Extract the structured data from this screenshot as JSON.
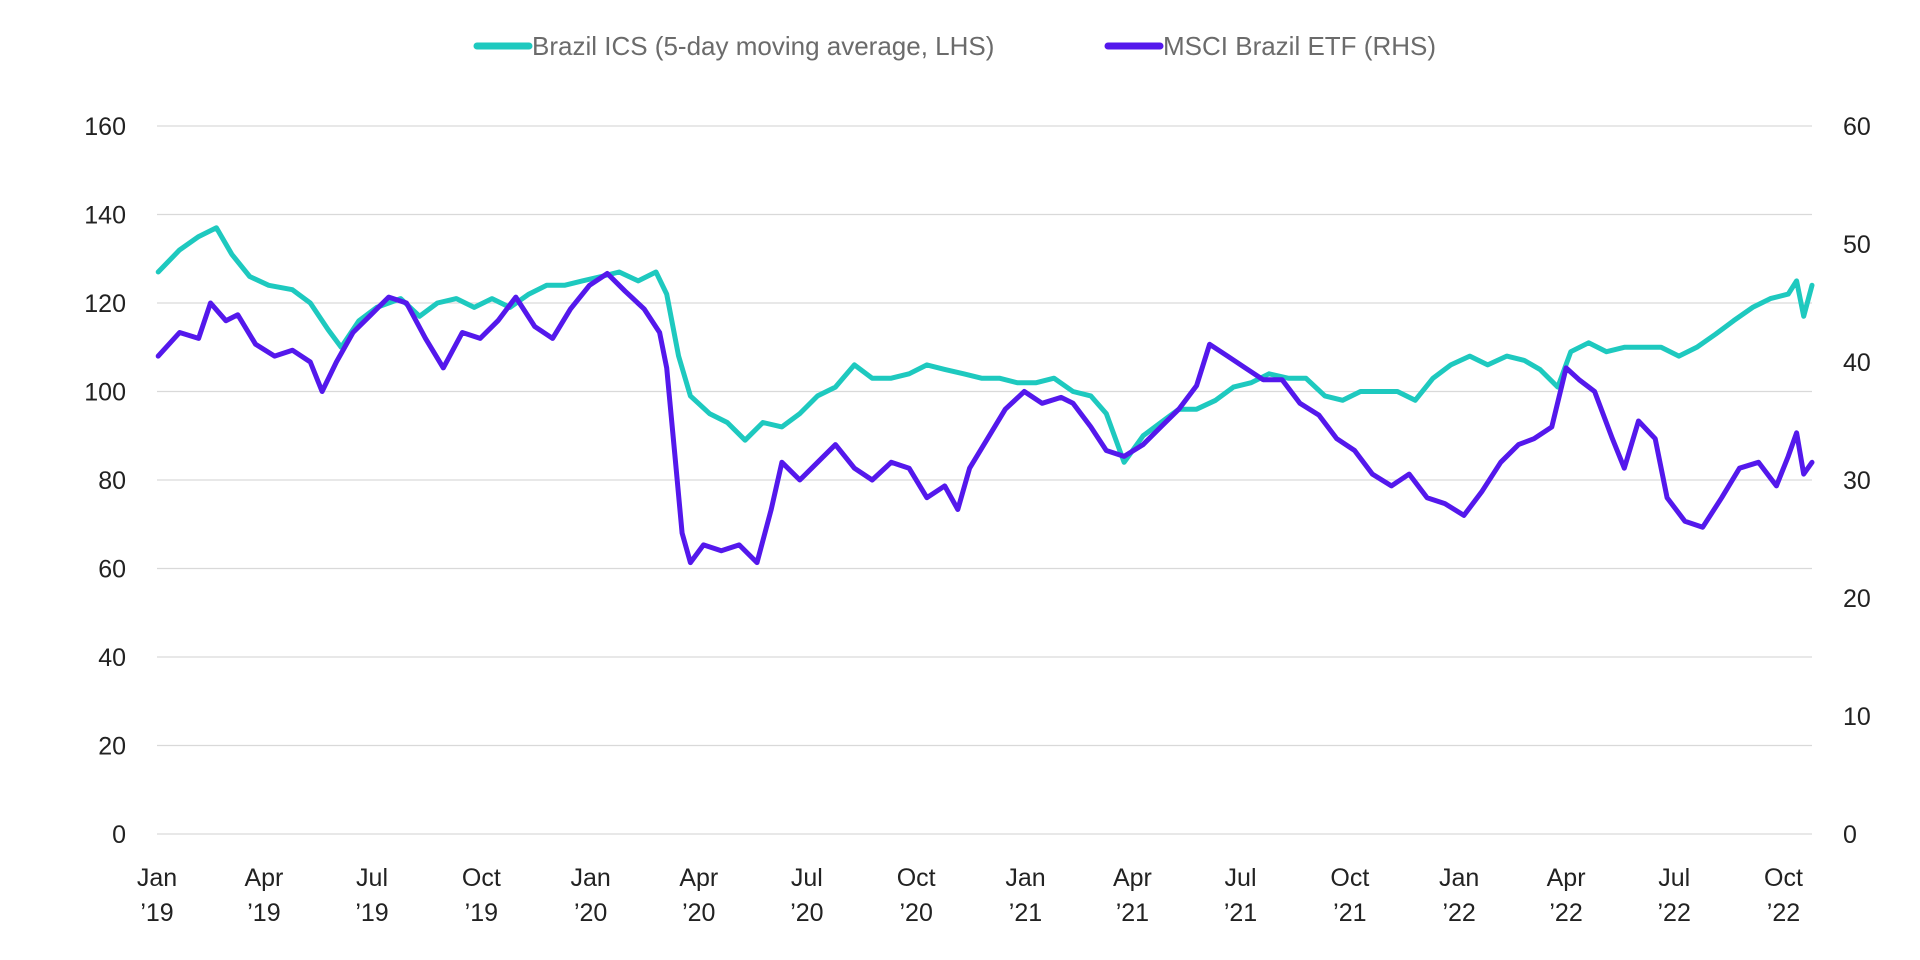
{
  "chart_data": {
    "type": "line",
    "title": "",
    "legend": {
      "placement": "top-center",
      "entries": [
        {
          "label": "Brazil ICS (5-day moving average, LHS)",
          "color": "#1ec9bf",
          "axis": "left"
        },
        {
          "label": "MSCI Brazil ETF (RHS)",
          "color": "#5418ec",
          "axis": "right"
        }
      ]
    },
    "x_axis": {
      "range": [
        "2019-01-01",
        "2022-10-25"
      ],
      "ticks": [
        {
          "date": "2019-01-01",
          "month": "Jan",
          "year": "’19"
        },
        {
          "date": "2019-04-01",
          "month": "Apr",
          "year": "’19"
        },
        {
          "date": "2019-07-01",
          "month": "Jul",
          "year": "’19"
        },
        {
          "date": "2019-10-01",
          "month": "Oct",
          "year": "’19"
        },
        {
          "date": "2020-01-01",
          "month": "Jan",
          "year": "’20"
        },
        {
          "date": "2020-04-01",
          "month": "Apr",
          "year": "’20"
        },
        {
          "date": "2020-07-01",
          "month": "Jul",
          "year": "’20"
        },
        {
          "date": "2020-10-01",
          "month": "Oct",
          "year": "’20"
        },
        {
          "date": "2021-01-01",
          "month": "Jan",
          "year": "’21"
        },
        {
          "date": "2021-04-01",
          "month": "Apr",
          "year": "’21"
        },
        {
          "date": "2021-07-01",
          "month": "Jul",
          "year": "’21"
        },
        {
          "date": "2021-10-01",
          "month": "Oct",
          "year": "’21"
        },
        {
          "date": "2022-01-01",
          "month": "Jan",
          "year": "’22"
        },
        {
          "date": "2022-04-01",
          "month": "Apr",
          "year": "’22"
        },
        {
          "date": "2022-07-01",
          "month": "Jul",
          "year": "’22"
        },
        {
          "date": "2022-10-01",
          "month": "Oct",
          "year": "’22"
        }
      ]
    },
    "y_left": {
      "ylim": [
        0,
        160
      ],
      "ticks": [
        0,
        20,
        40,
        60,
        80,
        100,
        120,
        140,
        160
      ]
    },
    "y_right": {
      "ylim": [
        0,
        60
      ],
      "ticks": [
        0,
        10,
        20,
        30,
        40,
        50,
        60
      ]
    },
    "grid": true,
    "series": [
      {
        "name": "Brazil ICS (5-day moving average, LHS)",
        "axis": "left",
        "color": "#1ec9bf",
        "points": [
          [
            "2019-01-02",
            127
          ],
          [
            "2019-01-20",
            132
          ],
          [
            "2019-02-05",
            135
          ],
          [
            "2019-02-20",
            137
          ],
          [
            "2019-03-05",
            131
          ],
          [
            "2019-03-20",
            126
          ],
          [
            "2019-04-05",
            124
          ],
          [
            "2019-04-25",
            123
          ],
          [
            "2019-05-10",
            120
          ],
          [
            "2019-05-25",
            114
          ],
          [
            "2019-06-05",
            110
          ],
          [
            "2019-06-20",
            116
          ],
          [
            "2019-07-05",
            119
          ],
          [
            "2019-07-25",
            121
          ],
          [
            "2019-08-10",
            117
          ],
          [
            "2019-08-25",
            120
          ],
          [
            "2019-09-10",
            121
          ],
          [
            "2019-09-25",
            119
          ],
          [
            "2019-10-10",
            121
          ],
          [
            "2019-10-25",
            119
          ],
          [
            "2019-11-10",
            122
          ],
          [
            "2019-11-25",
            124
          ],
          [
            "2019-12-10",
            124
          ],
          [
            "2019-12-25",
            125
          ],
          [
            "2020-01-10",
            126
          ],
          [
            "2020-01-25",
            127
          ],
          [
            "2020-02-10",
            125
          ],
          [
            "2020-02-25",
            127
          ],
          [
            "2020-03-05",
            122
          ],
          [
            "2020-03-15",
            108
          ],
          [
            "2020-03-25",
            99
          ],
          [
            "2020-04-10",
            95
          ],
          [
            "2020-04-25",
            93
          ],
          [
            "2020-05-10",
            89
          ],
          [
            "2020-05-25",
            93
          ],
          [
            "2020-06-10",
            92
          ],
          [
            "2020-06-25",
            95
          ],
          [
            "2020-07-10",
            99
          ],
          [
            "2020-07-25",
            101
          ],
          [
            "2020-08-10",
            106
          ],
          [
            "2020-08-25",
            103
          ],
          [
            "2020-09-10",
            103
          ],
          [
            "2020-09-25",
            104
          ],
          [
            "2020-10-10",
            106
          ],
          [
            "2020-10-25",
            105
          ],
          [
            "2020-11-10",
            104
          ],
          [
            "2020-11-25",
            103
          ],
          [
            "2020-12-10",
            103
          ],
          [
            "2020-12-25",
            102
          ],
          [
            "2021-01-10",
            102
          ],
          [
            "2021-01-25",
            103
          ],
          [
            "2021-02-10",
            100
          ],
          [
            "2021-02-25",
            99
          ],
          [
            "2021-03-10",
            95
          ],
          [
            "2021-03-25",
            84
          ],
          [
            "2021-04-10",
            90
          ],
          [
            "2021-04-25",
            93
          ],
          [
            "2021-05-10",
            96
          ],
          [
            "2021-05-25",
            96
          ],
          [
            "2021-06-10",
            98
          ],
          [
            "2021-06-25",
            101
          ],
          [
            "2021-07-10",
            102
          ],
          [
            "2021-07-25",
            104
          ],
          [
            "2021-08-10",
            103
          ],
          [
            "2021-08-25",
            103
          ],
          [
            "2021-09-10",
            99
          ],
          [
            "2021-09-25",
            98
          ],
          [
            "2021-10-10",
            100
          ],
          [
            "2021-10-25",
            100
          ],
          [
            "2021-11-10",
            100
          ],
          [
            "2021-11-25",
            98
          ],
          [
            "2021-12-10",
            103
          ],
          [
            "2021-12-25",
            106
          ],
          [
            "2022-01-10",
            108
          ],
          [
            "2022-01-25",
            106
          ],
          [
            "2022-02-10",
            108
          ],
          [
            "2022-02-25",
            107
          ],
          [
            "2022-03-10",
            105
          ],
          [
            "2022-03-25",
            101
          ],
          [
            "2022-04-05",
            109
          ],
          [
            "2022-04-20",
            111
          ],
          [
            "2022-05-05",
            109
          ],
          [
            "2022-05-20",
            110
          ],
          [
            "2022-06-05",
            110
          ],
          [
            "2022-06-20",
            110
          ],
          [
            "2022-07-05",
            108
          ],
          [
            "2022-07-20",
            110
          ],
          [
            "2022-08-05",
            113
          ],
          [
            "2022-08-20",
            116
          ],
          [
            "2022-09-05",
            119
          ],
          [
            "2022-09-20",
            121
          ],
          [
            "2022-10-05",
            122
          ],
          [
            "2022-10-12",
            125
          ],
          [
            "2022-10-18",
            117
          ],
          [
            "2022-10-25",
            124
          ]
        ]
      },
      {
        "name": "MSCI Brazil ETF (RHS)",
        "axis": "right",
        "color": "#5418ec",
        "points": [
          [
            "2019-01-02",
            40.5
          ],
          [
            "2019-01-20",
            42.5
          ],
          [
            "2019-02-05",
            42.0
          ],
          [
            "2019-02-15",
            45.0
          ],
          [
            "2019-02-28",
            43.5
          ],
          [
            "2019-03-10",
            44.0
          ],
          [
            "2019-03-25",
            41.5
          ],
          [
            "2019-04-10",
            40.5
          ],
          [
            "2019-04-25",
            41.0
          ],
          [
            "2019-05-10",
            40.0
          ],
          [
            "2019-05-20",
            37.5
          ],
          [
            "2019-06-01",
            40.0
          ],
          [
            "2019-06-15",
            42.5
          ],
          [
            "2019-06-30",
            44.0
          ],
          [
            "2019-07-15",
            45.5
          ],
          [
            "2019-07-30",
            45.0
          ],
          [
            "2019-08-15",
            42.0
          ],
          [
            "2019-08-30",
            39.5
          ],
          [
            "2019-09-15",
            42.5
          ],
          [
            "2019-09-30",
            42.0
          ],
          [
            "2019-10-15",
            43.5
          ],
          [
            "2019-10-30",
            45.5
          ],
          [
            "2019-11-15",
            43.0
          ],
          [
            "2019-11-30",
            42.0
          ],
          [
            "2019-12-15",
            44.5
          ],
          [
            "2019-12-31",
            46.5
          ],
          [
            "2020-01-15",
            47.5
          ],
          [
            "2020-01-30",
            46.0
          ],
          [
            "2020-02-15",
            44.5
          ],
          [
            "2020-02-28",
            42.5
          ],
          [
            "2020-03-05",
            39.5
          ],
          [
            "2020-03-12",
            32.0
          ],
          [
            "2020-03-18",
            25.5
          ],
          [
            "2020-03-25",
            23.0
          ],
          [
            "2020-04-05",
            24.5
          ],
          [
            "2020-04-20",
            24.0
          ],
          [
            "2020-05-05",
            24.5
          ],
          [
            "2020-05-20",
            23.0
          ],
          [
            "2020-06-01",
            27.5
          ],
          [
            "2020-06-10",
            31.5
          ],
          [
            "2020-06-25",
            30.0
          ],
          [
            "2020-07-10",
            31.5
          ],
          [
            "2020-07-25",
            33.0
          ],
          [
            "2020-08-10",
            31.0
          ],
          [
            "2020-08-25",
            30.0
          ],
          [
            "2020-09-10",
            31.5
          ],
          [
            "2020-09-25",
            31.0
          ],
          [
            "2020-10-10",
            28.5
          ],
          [
            "2020-10-25",
            29.5
          ],
          [
            "2020-11-05",
            27.5
          ],
          [
            "2020-11-15",
            31.0
          ],
          [
            "2020-11-30",
            33.5
          ],
          [
            "2020-12-15",
            36.0
          ],
          [
            "2020-12-31",
            37.5
          ],
          [
            "2021-01-15",
            36.5
          ],
          [
            "2021-01-31",
            37.0
          ],
          [
            "2021-02-10",
            36.5
          ],
          [
            "2021-02-25",
            34.5
          ],
          [
            "2021-03-10",
            32.5
          ],
          [
            "2021-03-25",
            32.0
          ],
          [
            "2021-04-10",
            33.0
          ],
          [
            "2021-04-25",
            34.5
          ],
          [
            "2021-05-10",
            36.0
          ],
          [
            "2021-05-25",
            38.0
          ],
          [
            "2021-06-05",
            41.5
          ],
          [
            "2021-06-20",
            40.5
          ],
          [
            "2021-07-05",
            39.5
          ],
          [
            "2021-07-20",
            38.5
          ],
          [
            "2021-08-05",
            38.5
          ],
          [
            "2021-08-20",
            36.5
          ],
          [
            "2021-09-05",
            35.5
          ],
          [
            "2021-09-20",
            33.5
          ],
          [
            "2021-10-05",
            32.5
          ],
          [
            "2021-10-20",
            30.5
          ],
          [
            "2021-11-05",
            29.5
          ],
          [
            "2021-11-20",
            30.5
          ],
          [
            "2021-12-05",
            28.5
          ],
          [
            "2021-12-20",
            28.0
          ],
          [
            "2022-01-05",
            27.0
          ],
          [
            "2022-01-20",
            29.0
          ],
          [
            "2022-02-05",
            31.5
          ],
          [
            "2022-02-20",
            33.0
          ],
          [
            "2022-03-05",
            33.5
          ],
          [
            "2022-03-20",
            34.5
          ],
          [
            "2022-04-01",
            39.5
          ],
          [
            "2022-04-12",
            38.5
          ],
          [
            "2022-04-25",
            37.5
          ],
          [
            "2022-05-10",
            33.5
          ],
          [
            "2022-05-20",
            31.0
          ],
          [
            "2022-06-01",
            35.0
          ],
          [
            "2022-06-15",
            33.5
          ],
          [
            "2022-06-25",
            28.5
          ],
          [
            "2022-07-10",
            26.5
          ],
          [
            "2022-07-25",
            26.0
          ],
          [
            "2022-08-10",
            28.5
          ],
          [
            "2022-08-25",
            31.0
          ],
          [
            "2022-09-10",
            31.5
          ],
          [
            "2022-09-25",
            29.5
          ],
          [
            "2022-10-05",
            32.0
          ],
          [
            "2022-10-12",
            34.0
          ],
          [
            "2022-10-18",
            30.5
          ],
          [
            "2022-10-25",
            31.5
          ]
        ]
      }
    ]
  }
}
